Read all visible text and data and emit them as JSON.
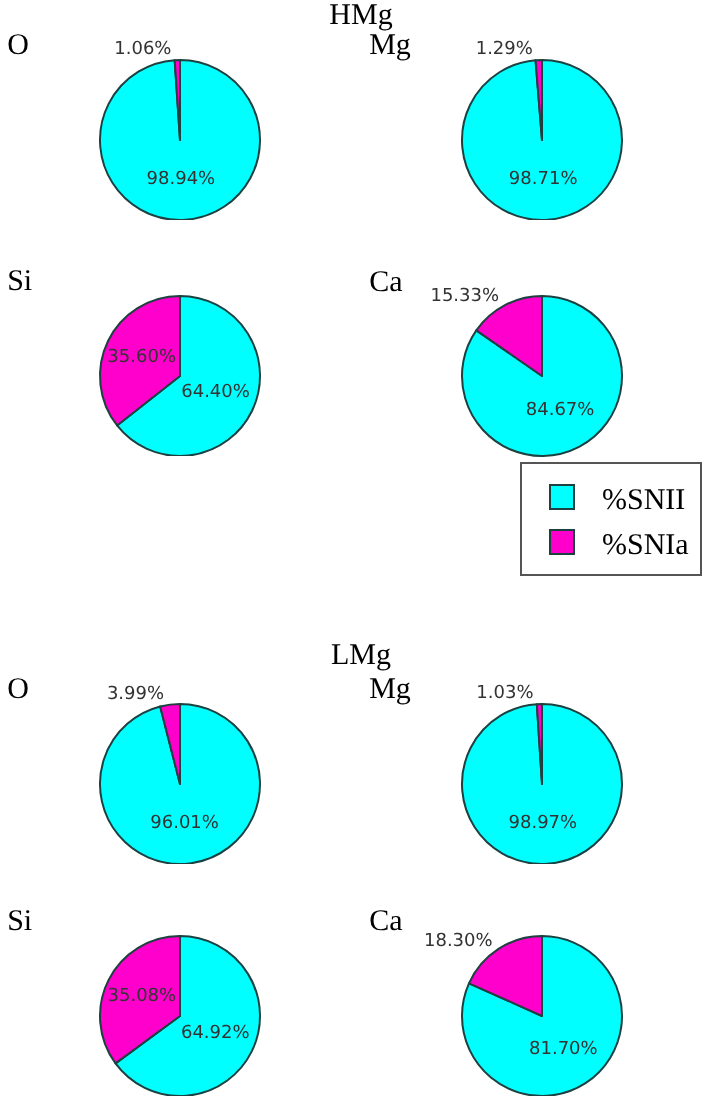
{
  "chart_data": [
    {
      "type": "pie",
      "title": "O",
      "annotations": [
        "HMg"
      ],
      "categories": [
        null,
        null
      ],
      "values": [
        98.94,
        1.06
      ],
      "colors": [
        "#00ffff",
        "#ff00cc"
      ],
      "value_labels": [
        "98.94%",
        "1.06%"
      ]
    },
    {
      "type": "pie",
      "title": "Mg",
      "categories": [
        null,
        null
      ],
      "values": [
        98.71,
        1.29
      ],
      "colors": [
        "#00ffff",
        "#ff00cc"
      ],
      "value_labels": [
        "98.71%",
        "1.29%"
      ]
    },
    {
      "type": "pie",
      "title": "Si",
      "categories": [
        null,
        null
      ],
      "values": [
        64.4,
        35.6
      ],
      "colors": [
        "#00ffff",
        "#ff00cc"
      ],
      "value_labels": [
        "64.40%",
        "35.60%"
      ]
    },
    {
      "type": "pie",
      "title": "Ca",
      "categories": [
        "%SNII",
        "%SNIa"
      ],
      "values": [
        84.67,
        15.33
      ],
      "colors": [
        "#00ffff",
        "#ff00cc"
      ],
      "value_labels": [
        "84.67%",
        "15.33%"
      ],
      "legend": "bottom right"
    },
    {
      "type": "pie",
      "title": "O",
      "annotations": [
        "LMg"
      ],
      "categories": [
        null,
        null
      ],
      "values": [
        96.01,
        3.99
      ],
      "colors": [
        "#00ffff",
        "#ff00cc"
      ],
      "value_labels": [
        "96.01%",
        "3.99%"
      ]
    },
    {
      "type": "pie",
      "title": "Mg",
      "categories": [
        null,
        null
      ],
      "values": [
        98.97,
        1.03
      ],
      "colors": [
        "#00ffff",
        "#ff00cc"
      ],
      "value_labels": [
        "98.97%",
        "1.03%"
      ]
    },
    {
      "type": "pie",
      "title": "Si",
      "categories": [
        null,
        null
      ],
      "values": [
        64.92,
        35.08
      ],
      "colors": [
        "#00ffff",
        "#ff00cc"
      ],
      "value_labels": [
        "64.92%",
        "35.08%"
      ]
    },
    {
      "type": "pie",
      "title": "Ca",
      "categories": [
        null,
        null
      ],
      "values": [
        81.7,
        18.3
      ],
      "colors": [
        "#00ffff",
        "#ff00cc"
      ],
      "value_labels": [
        "81.70%",
        "18.30%"
      ]
    }
  ]
}
